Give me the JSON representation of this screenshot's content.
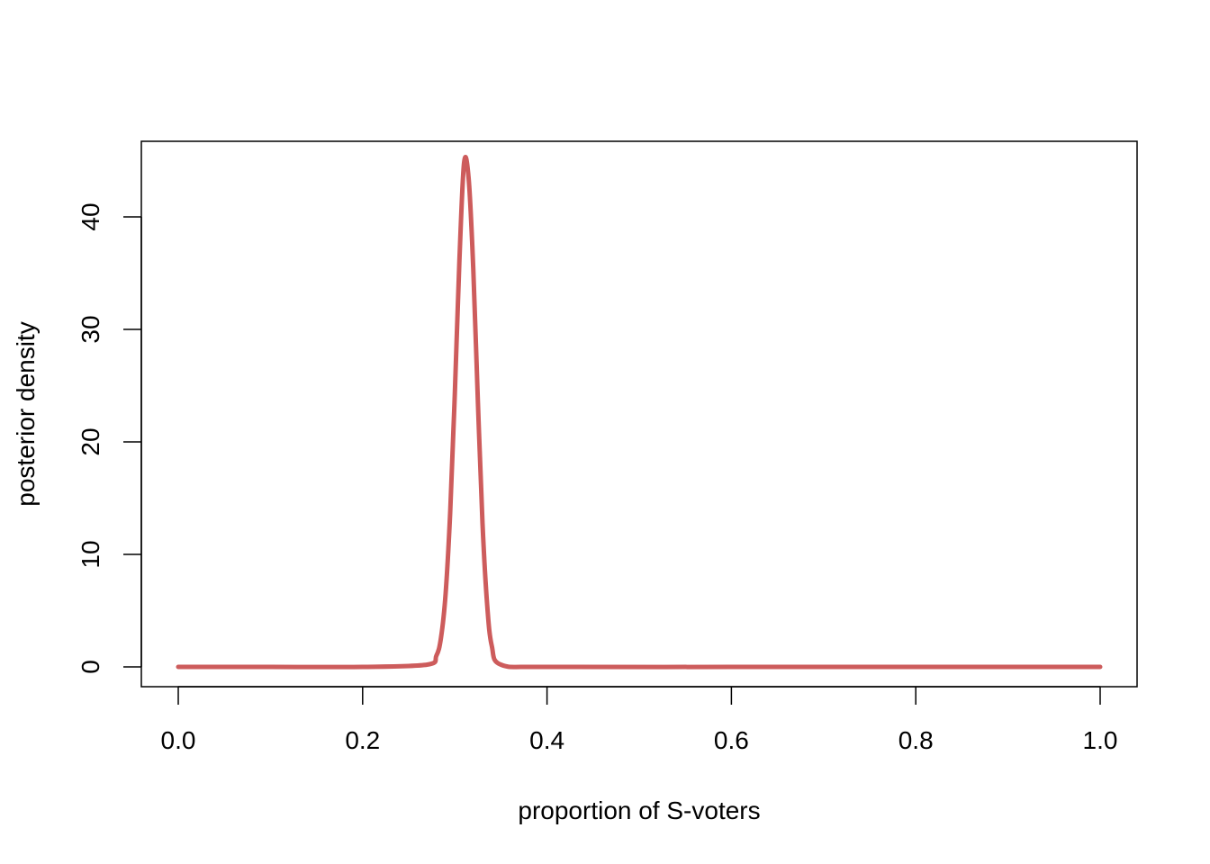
{
  "chart_data": {
    "type": "line",
    "title": "",
    "xlabel": "proportion of S-voters",
    "ylabel": "posterior density",
    "xlim": [
      0,
      1
    ],
    "ylim": [
      0,
      45
    ],
    "xticks": [
      "0.0",
      "0.2",
      "0.4",
      "0.6",
      "0.8",
      "1.0"
    ],
    "yticks": [
      "0",
      "10",
      "20",
      "30",
      "40"
    ],
    "grid": false,
    "legend": "none",
    "series": [
      {
        "color": "#cd5c5c",
        "x": [
          0.0,
          0.1,
          0.2,
          0.27,
          0.28,
          0.285,
          0.29,
          0.295,
          0.3,
          0.305,
          0.31,
          0.315,
          0.32,
          0.325,
          0.33,
          0.335,
          0.34,
          0.35,
          0.4,
          0.6,
          0.8,
          1.0
        ],
        "y": [
          0,
          0,
          0,
          0.2,
          1.0,
          2.6,
          6.5,
          13.8,
          24.3,
          36.2,
          44.8,
          43.4,
          35.4,
          23.6,
          12.8,
          5.6,
          1.9,
          0.2,
          0,
          0,
          0,
          0
        ]
      }
    ]
  }
}
